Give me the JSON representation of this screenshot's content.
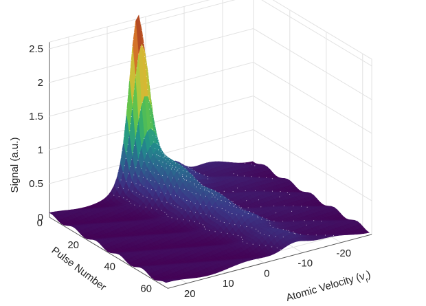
{
  "chart_data": {
    "type": "surface3d",
    "title": "",
    "zlabel": "Signal (a.u.)",
    "ylabel": "Pulse Number",
    "xlabel": "Atomic Velocity (v",
    "xlabel_subscript": "r",
    "xlabel_close": ")",
    "z_ticks": [
      "0",
      "0.5",
      "1",
      "1.5",
      "2",
      "2.5"
    ],
    "y_ticks": [
      "0",
      "20",
      "40",
      "60"
    ],
    "x_ticks": [
      "20",
      "10",
      "0",
      "-10",
      "-20"
    ],
    "zlim": [
      0,
      2.5
    ],
    "ylim": [
      0,
      65
    ],
    "xlim": [
      -28,
      25
    ],
    "grid": true,
    "colormap": "viridis",
    "contour_lines": true,
    "peak": {
      "pulse_number": 0,
      "atomic_velocity": 2,
      "signal": 2.6
    },
    "secondary_peak": {
      "pulse_number": 0,
      "atomic_velocity": -7,
      "signal": 1.1
    }
  }
}
